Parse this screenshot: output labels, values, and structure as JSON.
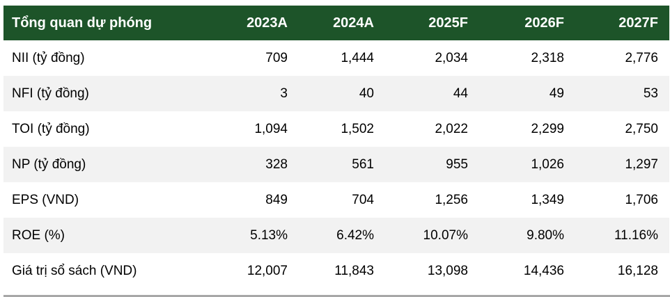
{
  "chart_data": {
    "type": "table",
    "title": "Tổng quan dự phóng",
    "columns": [
      "2023A",
      "2024A",
      "2025F",
      "2026F",
      "2027F"
    ],
    "rows": [
      {
        "label": "NII (tỷ đồng)",
        "values": [
          "709",
          "1,444",
          "2,034",
          "2,318",
          "2,776"
        ]
      },
      {
        "label": "NFI (tỷ đồng)",
        "values": [
          "3",
          "40",
          "44",
          "49",
          "53"
        ]
      },
      {
        "label": "TOI (tỷ đồng)",
        "values": [
          "1,094",
          "1,502",
          "2,022",
          "2,299",
          "2,750"
        ]
      },
      {
        "label": "NP (tỷ đồng)",
        "values": [
          "328",
          "561",
          "955",
          "1,026",
          "1,297"
        ]
      },
      {
        "label": "EPS (VND)",
        "values": [
          "849",
          "704",
          "1,256",
          "1,349",
          "1,706"
        ]
      },
      {
        "label": "ROE (%)",
        "values": [
          "5.13%",
          "6.42%",
          "10.07%",
          "9.80%",
          "11.16%"
        ]
      },
      {
        "label": "Giá trị sổ sách (VND)",
        "values": [
          "12,007",
          "11,843",
          "13,098",
          "14,436",
          "16,128"
        ]
      }
    ],
    "layout": {
      "header_position": "top",
      "zebra_striping": true,
      "numeric_alignment": "right"
    }
  },
  "colors": {
    "header_background": "#1D5429",
    "header_text": "#FFFFFF",
    "row_stripe": "#F2F2F2",
    "body_text": "#000000",
    "bottom_divider": "#A7A7A7"
  }
}
